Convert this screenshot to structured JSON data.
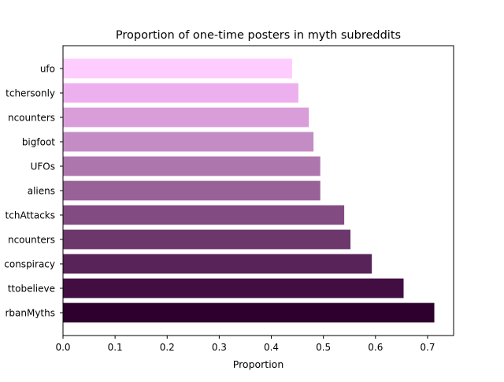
{
  "chart_data": {
    "type": "bar",
    "orientation": "horizontal",
    "title": "Proportion of one-time posters in myth subreddits",
    "xlabel": "Proportion",
    "ylabel": "",
    "xlim": [
      0.0,
      0.75
    ],
    "xticks": [
      0.0,
      0.1,
      0.2,
      0.3,
      0.4,
      0.5,
      0.6,
      0.7
    ],
    "xtick_labels": [
      "0.0",
      "0.1",
      "0.2",
      "0.3",
      "0.4",
      "0.5",
      "0.6",
      "0.7"
    ],
    "grid": false,
    "categories": [
      "ufo",
      "tchersonly",
      "ncounters",
      "bigfoot",
      "UFOs",
      "aliens",
      "tchAttacks",
      "ncounters",
      "conspiracy",
      "ttobelieve",
      "rbanMyths"
    ],
    "values": [
      0.44,
      0.452,
      0.472,
      0.481,
      0.494,
      0.494,
      0.54,
      0.552,
      0.593,
      0.654,
      0.713
    ],
    "colors": [
      "#ffccff",
      "#edb0ee",
      "#d99ed9",
      "#c48cc4",
      "#ad76ad",
      "#986198",
      "#824c82",
      "#6c386c",
      "#582358",
      "#420e42",
      "#2d002d"
    ]
  }
}
